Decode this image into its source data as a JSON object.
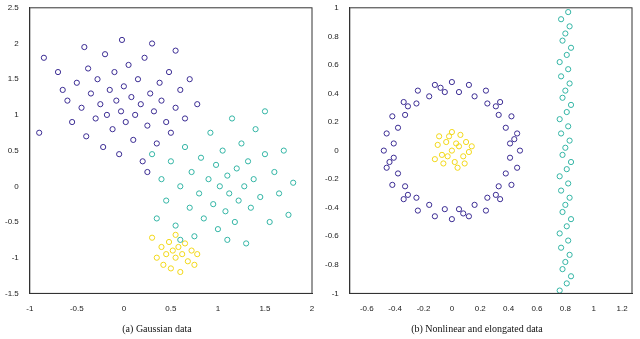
{
  "chart_data": [
    {
      "type": "scatter",
      "title": "(a) Gaussian data",
      "xlim": [
        -1,
        2
      ],
      "xticks": [
        -1,
        -0.5,
        0,
        0.5,
        1,
        1.5,
        2
      ],
      "ylim": [
        -1.5,
        2.5
      ],
      "yticks": [
        -1.5,
        -1,
        -0.5,
        0,
        0.5,
        1,
        1.5,
        2,
        2.5
      ],
      "grid": false,
      "series": [
        {
          "color": "#3b2c93",
          "marker": "circle",
          "x": [
            -0.85,
            -0.7,
            -0.6,
            -0.55,
            -0.5,
            -0.45,
            -0.4,
            -0.38,
            -0.35,
            -0.3,
            -0.28,
            -0.25,
            -0.22,
            -0.2,
            -0.18,
            -0.15,
            -0.12,
            -0.1,
            -0.08,
            -0.05,
            -0.03,
            0,
            0.02,
            0.05,
            0.08,
            0.1,
            0.12,
            0.15,
            0.18,
            0.2,
            0.22,
            0.25,
            0.28,
            0.3,
            0.32,
            0.35,
            0.38,
            0.4,
            0.45,
            0.48,
            0.5,
            0.55,
            0.6,
            0.65,
            0.7,
            0.78,
            -0.9,
            -0.65,
            -0.02,
            0.25,
            -0.42,
            0.55
          ],
          "y": [
            1.8,
            1.6,
            1.2,
            0.9,
            1.45,
            1.1,
            0.7,
            1.65,
            1.3,
            0.95,
            1.5,
            1.15,
            0.55,
            1.85,
            1.0,
            1.35,
            0.8,
            1.6,
            1.2,
            0.45,
            1.05,
            1.4,
            0.9,
            1.7,
            1.25,
            0.65,
            1.0,
            1.5,
            1.15,
            0.35,
            1.8,
            0.85,
            1.3,
            2.0,
            1.05,
            0.6,
            1.45,
            1.2,
            0.9,
            1.6,
            0.75,
            1.1,
            1.35,
            0.95,
            1.5,
            1.15,
            0.75,
            1.35,
            2.05,
            0.2,
            1.95,
            1.9
          ]
        },
        {
          "color": "#33b5a5",
          "marker": "circle",
          "x": [
            0.35,
            0.4,
            0.45,
            0.5,
            0.55,
            0.6,
            0.65,
            0.7,
            0.72,
            0.75,
            0.8,
            0.82,
            0.85,
            0.9,
            0.92,
            0.95,
            0.98,
            1.0,
            1.02,
            1.05,
            1.08,
            1.1,
            1.12,
            1.15,
            1.18,
            1.2,
            1.22,
            1.25,
            1.28,
            1.3,
            1.32,
            1.35,
            1.38,
            1.4,
            1.45,
            1.5,
            1.55,
            1.6,
            1.65,
            1.7,
            1.8,
            1.5,
            0.3,
            1.75,
            1.1,
            0.6
          ],
          "y": [
            -0.45,
            0.1,
            -0.2,
            0.35,
            -0.55,
            0,
            0.55,
            -0.3,
            0.2,
            -0.7,
            -0.1,
            0.4,
            -0.45,
            0.1,
            0.75,
            -0.25,
            0.3,
            -0.6,
            0,
            0.5,
            -0.35,
            0.15,
            -0.1,
            0.95,
            -0.5,
            0.25,
            -0.2,
            0.6,
            0,
            -0.8,
            0.35,
            -0.3,
            0.1,
            0.8,
            -0.15,
            0.45,
            -0.5,
            0.2,
            -0.1,
            0.5,
            0.05,
            1.05,
            0.45,
            -0.4,
            -0.75,
            -0.75
          ]
        },
        {
          "color": "#f2d81a",
          "marker": "circle",
          "x": [
            0.3,
            0.35,
            0.4,
            0.42,
            0.45,
            0.48,
            0.5,
            0.52,
            0.55,
            0.55,
            0.58,
            0.6,
            0.62,
            0.65,
            0.68,
            0.72,
            0.75,
            0.78
          ],
          "y": [
            -0.72,
            -1,
            -0.85,
            -1.1,
            -0.95,
            -0.78,
            -1.15,
            -0.9,
            -1,
            -0.68,
            -0.85,
            -1.2,
            -0.95,
            -0.8,
            -1.05,
            -0.9,
            -1.1,
            -0.95
          ]
        }
      ]
    },
    {
      "type": "scatter",
      "title": "(b) Nonlinear and elongated data",
      "xlim": [
        -0.72,
        1.27
      ],
      "xticks": [
        -0.6,
        -0.4,
        -0.2,
        0,
        0.2,
        0.4,
        0.6,
        0.8,
        1,
        1.2
      ],
      "ylim": [
        -1,
        1
      ],
      "yticks": [
        -1,
        -0.8,
        -0.6,
        -0.4,
        -0.2,
        0,
        0.2,
        0.4,
        0.6,
        0.8,
        1
      ],
      "grid": false,
      "series": [
        {
          "color": "#33b5a5",
          "marker": "circle",
          "x": [
            0.76,
            0.81,
            0.84,
            0.78,
            0.8,
            0.83,
            0.77,
            0.82,
            0.76,
            0.81,
            0.84,
            0.78,
            0.8,
            0.83,
            0.77,
            0.82,
            0.76,
            0.81,
            0.84,
            0.78,
            0.8,
            0.83,
            0.77,
            0.82,
            0.76,
            0.81,
            0.84,
            0.78,
            0.8,
            0.83,
            0.77,
            0.82,
            0.76,
            0.81,
            0.84,
            0.78,
            0.8,
            0.83,
            0.77,
            0.82
          ],
          "y": [
            -0.98,
            -0.93,
            -0.88,
            -0.83,
            -0.78,
            -0.73,
            -0.68,
            -0.63,
            -0.58,
            -0.53,
            -0.48,
            -0.43,
            -0.38,
            -0.33,
            -0.28,
            -0.23,
            -0.18,
            -0.13,
            -0.08,
            -0.03,
            0.02,
            0.07,
            0.12,
            0.17,
            0.22,
            0.27,
            0.32,
            0.37,
            0.42,
            0.47,
            0.52,
            0.57,
            0.62,
            0.67,
            0.72,
            0.77,
            0.82,
            0.87,
            0.92,
            0.97
          ]
        },
        {
          "color": "#3b2c93",
          "marker": "circle",
          "x": [
            0.48,
            0.46,
            0.42,
            0.34,
            0.24,
            0.12,
            0.41,
            0.38,
            0.33,
            0.25,
            0.16,
            0.05,
            0,
            -0.12,
            -0.24,
            -0.34,
            -0.42,
            -0.46,
            -0.05,
            -0.16,
            -0.25,
            -0.33,
            -0.38,
            -0.41,
            -0.48,
            -0.46,
            -0.42,
            -0.34,
            -0.24,
            -0.12,
            -0.41,
            -0.38,
            -0.33,
            -0.25,
            -0.16,
            -0.05,
            0,
            0.12,
            0.24,
            0.34,
            0.42,
            0.46,
            0.05,
            0.16,
            0.25,
            0.33,
            0.38,
            0.41,
            0.44,
            -0.08,
            -0.44,
            0.08,
            0.31,
            -0.31,
            -0.31,
            0.31
          ],
          "y": [
            0,
            0.12,
            0.24,
            0.34,
            0.42,
            0.46,
            0.05,
            0.16,
            0.25,
            0.33,
            0.38,
            0.41,
            0.48,
            0.46,
            0.42,
            0.34,
            0.24,
            0.12,
            0.41,
            0.38,
            0.33,
            0.25,
            0.16,
            0.05,
            0,
            -0.12,
            -0.24,
            -0.34,
            -0.42,
            -0.46,
            -0.05,
            -0.16,
            -0.25,
            -0.33,
            -0.38,
            -0.41,
            -0.48,
            -0.46,
            -0.42,
            -0.34,
            -0.24,
            -0.12,
            -0.41,
            -0.38,
            -0.33,
            -0.25,
            -0.16,
            -0.05,
            0.08,
            0.44,
            -0.08,
            -0.44,
            0.31,
            0.31,
            -0.31,
            -0.31
          ]
        },
        {
          "color": "#f2d81a",
          "marker": "circle",
          "x": [
            0,
            0.05,
            -0.04,
            0.08,
            -0.07,
            0.02,
            -0.02,
            0.1,
            -0.1,
            0.04,
            -0.06,
            0.12,
            -0.12,
            0.06,
            -0.03,
            0.03,
            0,
            0.09,
            -0.09,
            0.14
          ],
          "y": [
            0,
            0.03,
            0.06,
            -0.04,
            -0.03,
            -0.08,
            0.1,
            0.06,
            0.04,
            -0.12,
            -0.09,
            -0.01,
            -0.06,
            0.11,
            -0.04,
            0.05,
            0.13,
            -0.09,
            0.1,
            0.03
          ]
        }
      ]
    }
  ]
}
